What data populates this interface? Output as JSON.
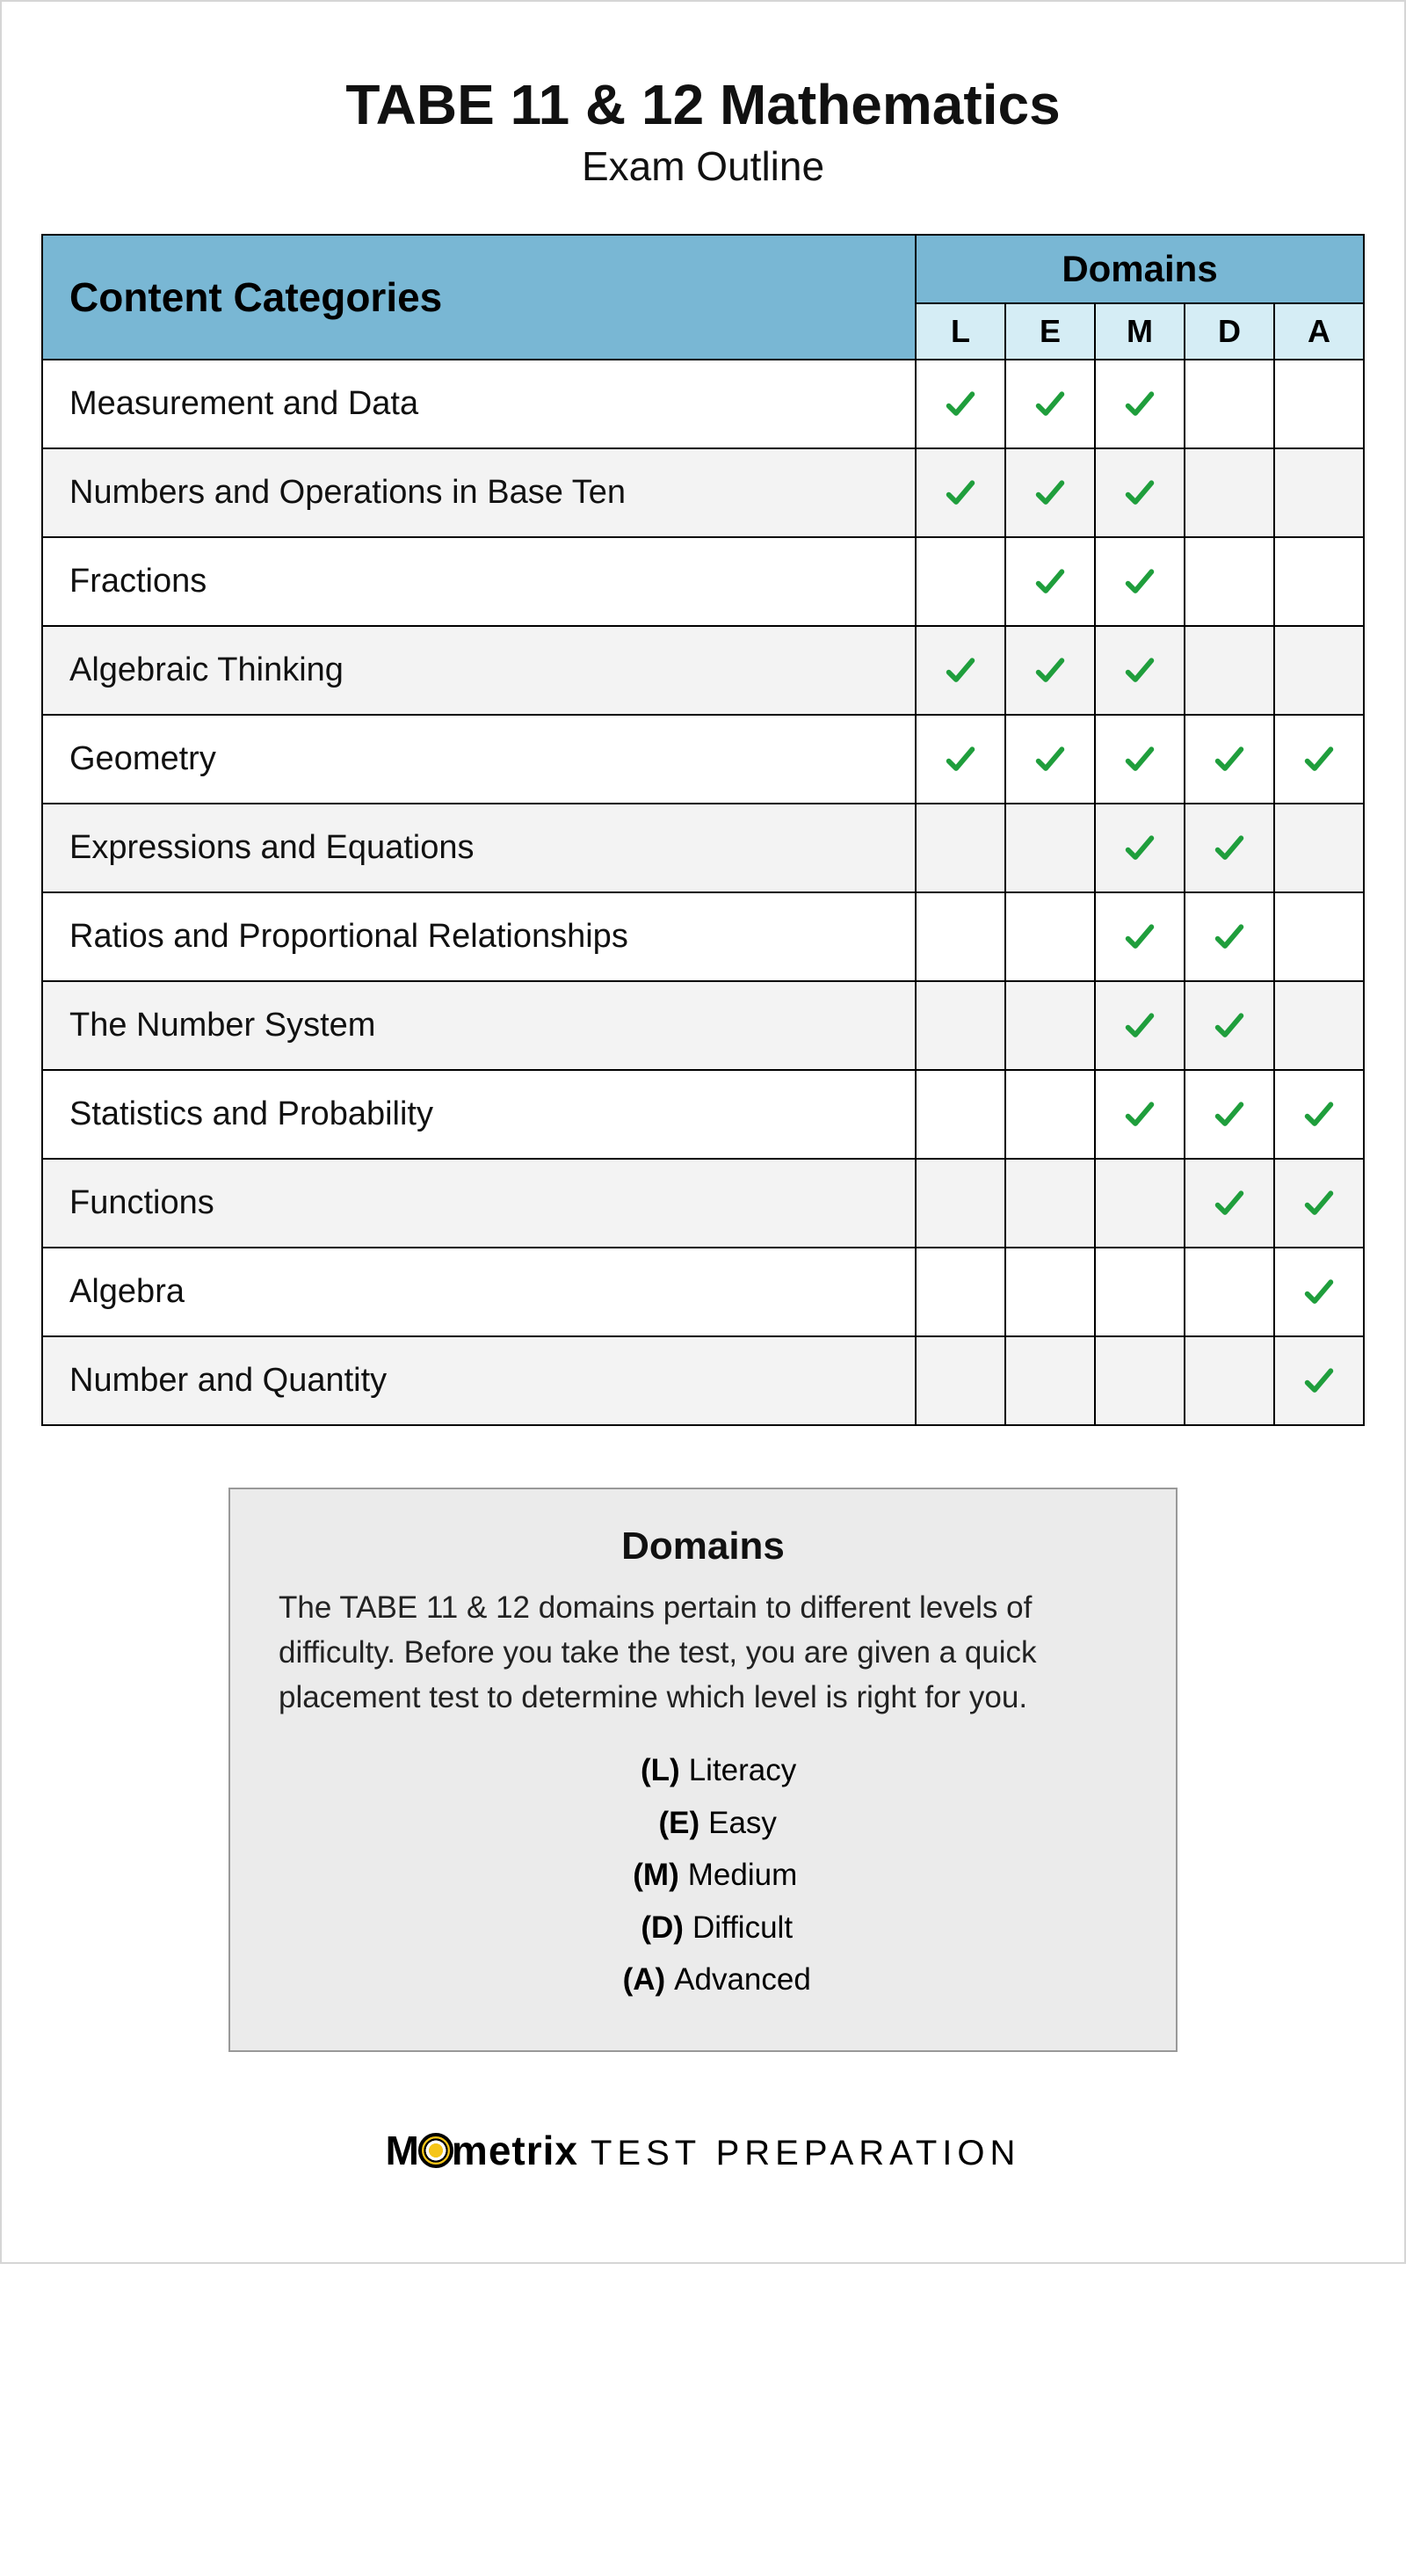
{
  "title": "TABE 11 & 12 Mathematics",
  "subtitle": "Exam Outline",
  "table": {
    "category_header": "Content Categories",
    "domains_header": "Domains",
    "domain_columns": [
      "L",
      "E",
      "M",
      "D",
      "A"
    ],
    "check_color": "#1f9e3c",
    "header_bg": "#79b7d4",
    "domain_col_bg": "#d5edf5",
    "row_alt_bg": "#f3f3f3",
    "border_color": "#000000",
    "rows": [
      {
        "label": "Measurement and Data",
        "checks": [
          true,
          true,
          true,
          false,
          false
        ]
      },
      {
        "label": "Numbers and Operations in Base Ten",
        "checks": [
          true,
          true,
          true,
          false,
          false
        ]
      },
      {
        "label": "Fractions",
        "checks": [
          false,
          true,
          true,
          false,
          false
        ]
      },
      {
        "label": "Algebraic Thinking",
        "checks": [
          true,
          true,
          true,
          false,
          false
        ]
      },
      {
        "label": "Geometry",
        "checks": [
          true,
          true,
          true,
          true,
          true
        ]
      },
      {
        "label": "Expressions and Equations",
        "checks": [
          false,
          false,
          true,
          true,
          false
        ]
      },
      {
        "label": "Ratios and Proportional Relationships",
        "checks": [
          false,
          false,
          true,
          true,
          false
        ]
      },
      {
        "label": "The Number System",
        "checks": [
          false,
          false,
          true,
          true,
          false
        ]
      },
      {
        "label": "Statistics and Probability",
        "checks": [
          false,
          false,
          true,
          true,
          true
        ]
      },
      {
        "label": "Functions",
        "checks": [
          false,
          false,
          false,
          true,
          true
        ]
      },
      {
        "label": "Algebra",
        "checks": [
          false,
          false,
          false,
          false,
          true
        ]
      },
      {
        "label": "Number and Quantity",
        "checks": [
          false,
          false,
          false,
          false,
          true
        ]
      }
    ]
  },
  "legend": {
    "title": "Domains",
    "description": "The TABE 11 & 12 domains pertain to different levels of difficulty. Before you take the test, you are given a quick placement test to determine which level is right for you.",
    "items": [
      {
        "key": "(L)",
        "value": "Literacy"
      },
      {
        "key": "(E)",
        "value": "Easy"
      },
      {
        "key": "(M)",
        "value": "Medium"
      },
      {
        "key": "(D)",
        "value": "Difficult"
      },
      {
        "key": "(A)",
        "value": "Advanced"
      }
    ]
  },
  "footer": {
    "brand_left": "M",
    "brand_right": "metrix",
    "tagline": "TEST  PREPARATION"
  }
}
